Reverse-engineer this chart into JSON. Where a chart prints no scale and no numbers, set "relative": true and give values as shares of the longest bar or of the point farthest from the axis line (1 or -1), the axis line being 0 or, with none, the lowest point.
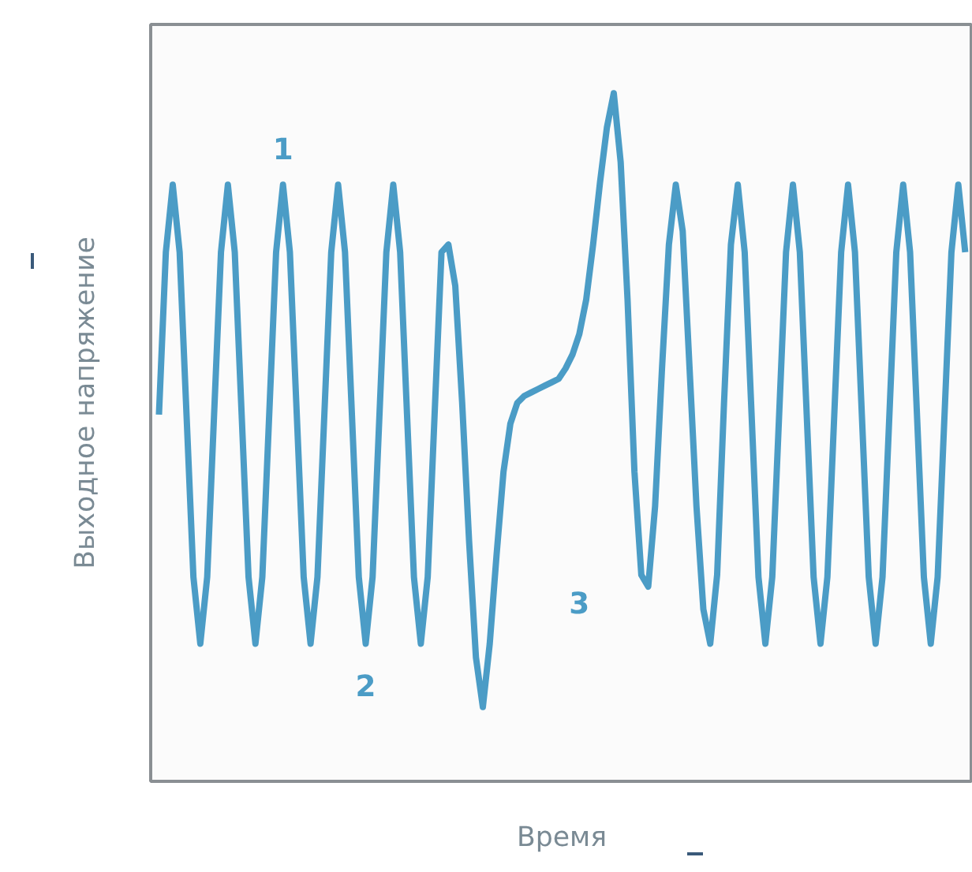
{
  "chart_data": {
    "type": "line",
    "relative": true,
    "xlabel": "Время",
    "ylabel": "Выходное напряжение",
    "grid": false,
    "marker": "none",
    "line_style": "solid",
    "annotations": [
      "1",
      "2",
      "3"
    ],
    "categories": [
      null,
      null,
      null,
      null,
      null,
      null,
      null,
      null,
      null,
      null,
      null,
      null,
      null,
      null,
      null,
      null,
      null,
      null,
      null,
      null,
      null,
      null,
      null,
      null,
      null,
      null,
      null,
      null,
      null,
      null,
      null,
      null,
      null,
      null,
      null,
      null,
      null,
      null,
      null,
      null,
      null,
      null,
      null,
      null,
      null,
      null,
      null,
      null,
      null,
      null,
      null,
      null,
      null,
      null,
      null,
      null,
      null,
      null,
      null,
      null,
      null,
      null,
      null,
      null,
      null,
      null,
      null,
      null,
      null,
      null,
      null,
      null,
      null,
      null,
      null,
      null,
      null,
      null,
      null,
      null,
      null,
      null,
      null,
      null,
      null,
      null,
      null,
      null,
      null,
      null,
      null,
      null,
      null,
      null,
      null,
      null,
      null,
      null,
      null,
      null,
      null,
      null,
      null,
      null,
      null,
      null,
      null,
      null,
      null,
      null,
      null,
      null,
      null,
      null,
      null,
      null,
      null,
      null
    ],
    "series": [
      {
        "color": "#4b9cc6",
        "values": [
          0.533,
          0.769,
          0.867,
          0.769,
          0.533,
          0.297,
          0.2,
          0.297,
          0.533,
          0.769,
          0.867,
          0.769,
          0.533,
          0.297,
          0.2,
          0.297,
          0.533,
          0.769,
          0.867,
          0.769,
          0.533,
          0.297,
          0.2,
          0.297,
          0.533,
          0.769,
          0.867,
          0.769,
          0.533,
          0.297,
          0.2,
          0.297,
          0.533,
          0.769,
          0.867,
          0.769,
          0.533,
          0.297,
          0.2,
          0.297,
          0.533,
          0.769,
          0.78,
          0.72,
          0.55,
          0.35,
          0.18,
          0.108,
          0.2,
          0.33,
          0.45,
          0.52,
          0.55,
          0.56,
          0.565,
          0.57,
          0.575,
          0.58,
          0.585,
          0.6,
          0.62,
          0.65,
          0.7,
          0.78,
          0.87,
          0.95,
          1,
          0.9,
          0.7,
          0.45,
          0.3,
          0.283,
          0.4,
          0.6,
          0.78,
          0.867,
          0.8,
          0.6,
          0.4,
          0.25,
          0.2,
          0.3,
          0.55,
          0.78,
          0.867,
          0.769,
          0.533,
          0.297,
          0.2,
          0.297,
          0.533,
          0.769,
          0.867,
          0.769,
          0.533,
          0.297,
          0.2,
          0.297,
          0.533,
          0.769,
          0.867,
          0.769,
          0.533,
          0.297,
          0.2,
          0.297,
          0.533,
          0.769,
          0.867,
          0.769,
          0.533,
          0.297,
          0.2,
          0.297,
          0.533,
          0.769,
          0.867,
          0.769
        ]
      }
    ]
  }
}
